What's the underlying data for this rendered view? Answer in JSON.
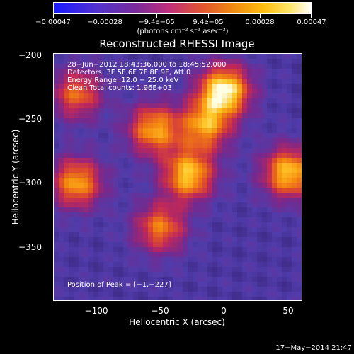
{
  "chart_data": {
    "type": "heatmap",
    "title": "Reconstructed RHESSI Image",
    "xlabel": "Heliocentric X (arcsec)",
    "ylabel": "Heliocentric Y (arcsec)",
    "xlim": [
      -133,
      60
    ],
    "ylim": [
      -393,
      -198
    ],
    "x_ticks": [
      "−100",
      "−50",
      "0",
      "50"
    ],
    "x_tick_values": [
      -100,
      -50,
      0,
      50
    ],
    "y_ticks": [
      "−200",
      "−250",
      "−300",
      "−350"
    ],
    "y_tick_values": [
      -200,
      -250,
      -300,
      -350
    ],
    "colorbar": {
      "ticks": [
        "−0.00047",
        "−0.00028",
        "−9.4e−05",
        "9.4e−05",
        "0.00028",
        "0.00047"
      ],
      "range": [
        -0.00047,
        0.00047
      ],
      "unit": "(photons cm⁻² s⁻¹ asec⁻²)"
    },
    "annotations": {
      "time_range": "28−Jun−2012 18:43:36.000 to 18:45:52.000",
      "detectors": "Detectors: 3F 5F 6F 7F 8F 9F, Att 0",
      "energy": "Energy Range: 12.0 − 25.0 keV",
      "clean": "Clean     Total counts: 1.96E+03",
      "peak": "Position of Peak = [−1,−227]"
    },
    "sources": [
      {
        "x": 0,
        "y": -227,
        "peak": 0.00047
      },
      {
        "x": -28,
        "y": -294,
        "peak": 0.0004
      },
      {
        "x": 50,
        "y": -292,
        "peak": 0.0004
      },
      {
        "x": -55,
        "y": -258,
        "peak": 0.00035
      },
      {
        "x": -15,
        "y": -255,
        "peak": 0.00034
      },
      {
        "x": -115,
        "y": -300,
        "peak": 0.00035
      },
      {
        "x": -50,
        "y": -336,
        "peak": 0.0003
      },
      {
        "x": -115,
        "y": -230,
        "peak": 0.00028
      }
    ]
  },
  "footer": "17−May−2014 21:47",
  "colors": {
    "background": "#2a1c5a",
    "min": "#1a1aff",
    "max": "#ffffff"
  }
}
